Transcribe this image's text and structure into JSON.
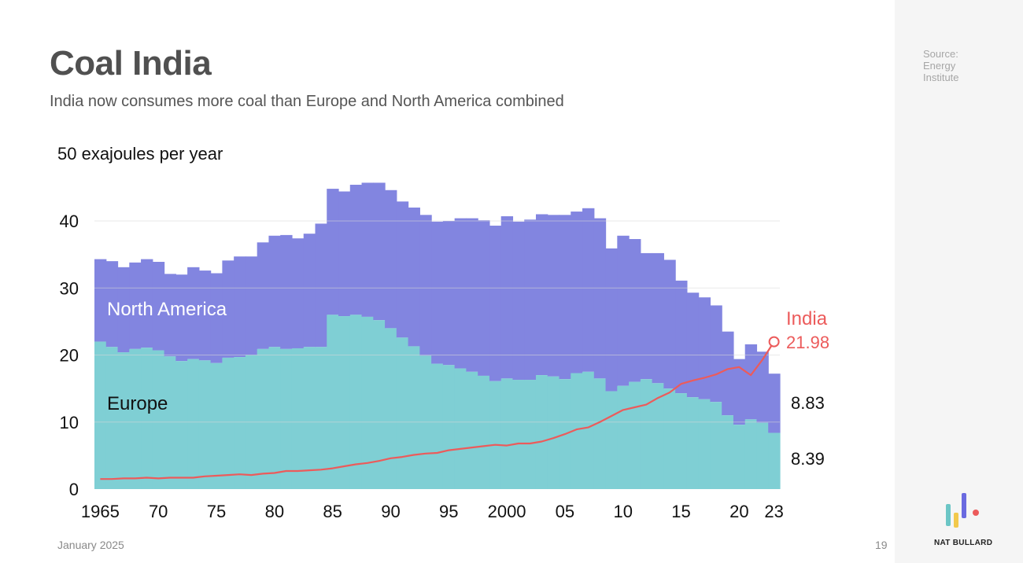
{
  "header": {
    "title": "Coal India",
    "subtitle": "India now consumes more coal than Europe and North America combined"
  },
  "source": {
    "lines": [
      "Source:",
      "Energy",
      "Institute"
    ]
  },
  "footer": {
    "date": "January 2025",
    "page_number": "19",
    "brand": "NAT BULLARD"
  },
  "colors": {
    "north_america": "#8285e0",
    "europe": "#7fcfd4",
    "india": "#ec5b5b",
    "grid": "#d9d9d9",
    "logo_teal": "#6cc6c6",
    "logo_yellow": "#f2c94c",
    "logo_purple": "#6a6ae0",
    "logo_red": "#ec5b5b"
  },
  "chart_data": {
    "type": "area",
    "title": "Coal India",
    "subtitle": "India now consumes more coal than Europe and North America combined",
    "ylabel": "50 exajoules per year",
    "ylim": [
      0,
      50
    ],
    "y_ticks": [
      "0",
      "10",
      "20",
      "30",
      "40"
    ],
    "y_tick_values": [
      0,
      10,
      20,
      30,
      40
    ],
    "x_tick_labels": [
      "1965",
      "70",
      "75",
      "80",
      "85",
      "90",
      "95",
      "2000",
      "05",
      "10",
      "15",
      "20",
      "23"
    ],
    "x_tick_years": [
      1965,
      1970,
      1975,
      1980,
      1985,
      1990,
      1995,
      2000,
      2005,
      2010,
      2015,
      2020,
      2023
    ],
    "years": [
      1965,
      1966,
      1967,
      1968,
      1969,
      1970,
      1971,
      1972,
      1973,
      1974,
      1975,
      1976,
      1977,
      1978,
      1979,
      1980,
      1981,
      1982,
      1983,
      1984,
      1985,
      1986,
      1987,
      1988,
      1989,
      1990,
      1991,
      1992,
      1993,
      1994,
      1995,
      1996,
      1997,
      1998,
      1999,
      2000,
      2001,
      2002,
      2003,
      2004,
      2005,
      2006,
      2007,
      2008,
      2009,
      2010,
      2011,
      2012,
      2013,
      2014,
      2015,
      2016,
      2017,
      2018,
      2019,
      2020,
      2021,
      2022,
      2023
    ],
    "series": [
      {
        "name": "Europe",
        "label": "Europe",
        "stacked": true,
        "values": [
          22.0,
          21.2,
          20.4,
          20.9,
          21.1,
          20.7,
          19.8,
          19.1,
          19.4,
          19.2,
          18.8,
          19.6,
          19.7,
          20.0,
          20.9,
          21.2,
          20.9,
          21.0,
          21.2,
          21.2,
          26.0,
          25.8,
          26.0,
          25.7,
          25.2,
          24.0,
          22.6,
          21.3,
          19.9,
          18.7,
          18.5,
          18.0,
          17.5,
          16.9,
          16.1,
          16.5,
          16.3,
          16.3,
          17.0,
          16.8,
          16.4,
          17.3,
          17.5,
          16.5,
          14.6,
          15.4,
          16.0,
          16.4,
          15.8,
          15.0,
          14.3,
          13.7,
          13.4,
          13.0,
          11.0,
          9.6,
          10.4,
          9.9,
          8.39
        ],
        "end_label": "8.39"
      },
      {
        "name": "North America",
        "label": "North America",
        "stacked": true,
        "values": [
          12.3,
          12.8,
          12.7,
          12.9,
          13.2,
          13.2,
          12.3,
          12.9,
          13.7,
          13.4,
          13.4,
          14.5,
          15.0,
          14.7,
          15.9,
          16.6,
          17.0,
          16.4,
          16.9,
          18.4,
          18.8,
          18.6,
          19.4,
          20.0,
          20.5,
          20.6,
          20.3,
          20.7,
          21.0,
          21.2,
          21.5,
          22.4,
          22.9,
          23.2,
          23.2,
          24.2,
          23.6,
          23.9,
          24.0,
          24.1,
          24.5,
          24.1,
          24.4,
          23.9,
          21.3,
          22.4,
          21.3,
          18.8,
          19.4,
          19.2,
          16.8,
          15.6,
          15.2,
          14.4,
          12.5,
          9.8,
          11.2,
          10.6,
          8.83
        ],
        "end_label": "8.83"
      },
      {
        "name": "India",
        "label": "India",
        "stacked": false,
        "values": [
          1.5,
          1.5,
          1.6,
          1.6,
          1.7,
          1.6,
          1.7,
          1.7,
          1.7,
          1.9,
          2.0,
          2.1,
          2.2,
          2.1,
          2.3,
          2.4,
          2.7,
          2.7,
          2.8,
          2.9,
          3.1,
          3.4,
          3.7,
          3.9,
          4.2,
          4.6,
          4.8,
          5.1,
          5.3,
          5.4,
          5.8,
          6.0,
          6.2,
          6.4,
          6.6,
          6.5,
          6.8,
          6.8,
          7.1,
          7.6,
          8.2,
          8.9,
          9.2,
          10.0,
          10.9,
          11.8,
          12.2,
          12.6,
          13.6,
          14.4,
          15.7,
          16.2,
          16.6,
          17.1,
          17.9,
          18.2,
          17.0,
          19.3,
          21.98
        ],
        "end_label": "21.98"
      }
    ]
  }
}
